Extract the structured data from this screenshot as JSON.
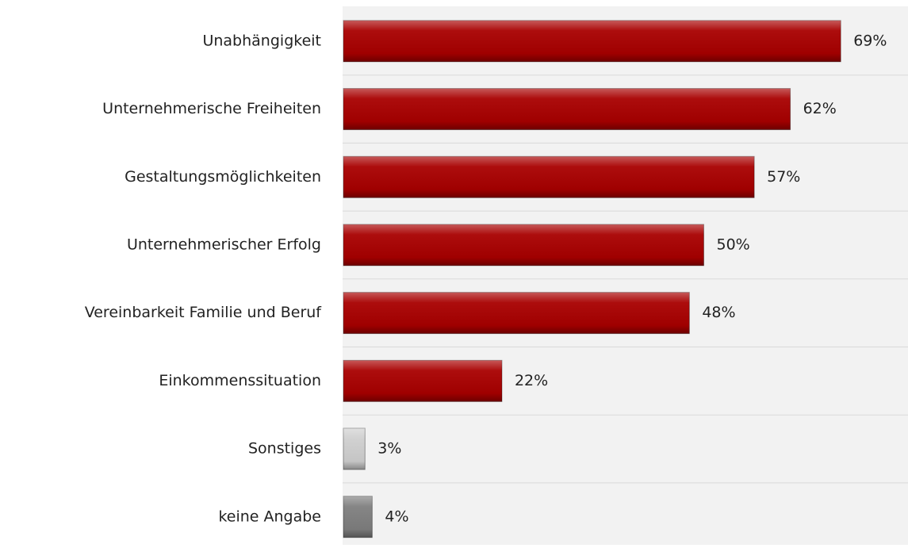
{
  "chart_data": {
    "type": "hbar",
    "categories": [
      "Unabhängigkeit",
      "Unternehmerische Freiheiten",
      "Gestaltungsmöglichkeiten",
      "Unternehmerischer Erfolg",
      "Vereinbarkeit Familie und Beruf",
      "Einkommenssituation",
      "Sonstiges",
      "keine Angabe"
    ],
    "values": [
      69,
      62,
      57,
      50,
      48,
      22,
      3,
      4
    ],
    "value_labels": [
      "69%",
      "62%",
      "57%",
      "50%",
      "48%",
      "22%",
      "3%",
      "4%"
    ],
    "colors": [
      "#a80000",
      "#a80000",
      "#a80000",
      "#a80000",
      "#a80000",
      "#a80000",
      "#cfcfcf",
      "#7f7f7f"
    ],
    "grid": true
  }
}
